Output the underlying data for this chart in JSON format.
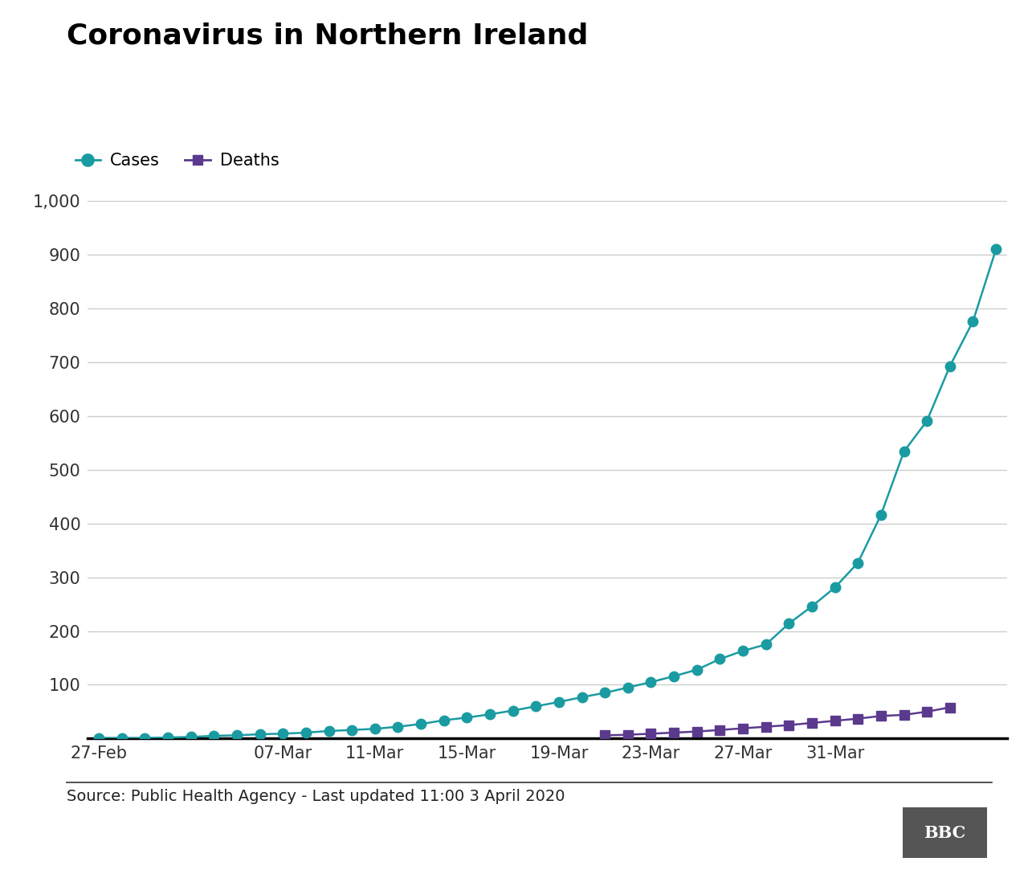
{
  "title": "Coronavirus in Northern Ireland",
  "cases_label": "Cases",
  "deaths_label": "Deaths",
  "source_text": "Source: Public Health Agency - Last updated 11:00 3 April 2020",
  "cases_color": "#1a9ba1",
  "deaths_color": "#5b3a8e",
  "background_color": "#ffffff",
  "plot_bg_color": "#ffffff",
  "grid_color": "#cccccc",
  "ylim": [
    0,
    1000
  ],
  "yticks": [
    0,
    100,
    200,
    300,
    400,
    500,
    600,
    700,
    800,
    900,
    1000
  ],
  "ytick_labels": [
    "",
    "100",
    "200",
    "300",
    "400",
    "500",
    "600",
    "700",
    "800",
    "900",
    "1,000"
  ],
  "cases": [
    1,
    1,
    1,
    2,
    3,
    5,
    6,
    8,
    9,
    11,
    14,
    16,
    18,
    22,
    27,
    34,
    39,
    45,
    52,
    60,
    68,
    77,
    85,
    95,
    105,
    116,
    128,
    148,
    163,
    175,
    214,
    246,
    281,
    327,
    416,
    534,
    591,
    693,
    776,
    910
  ],
  "deaths": [
    null,
    null,
    null,
    null,
    null,
    null,
    null,
    null,
    null,
    null,
    null,
    null,
    null,
    null,
    null,
    null,
    null,
    null,
    null,
    null,
    null,
    null,
    6,
    7,
    9,
    11,
    13,
    16,
    19,
    22,
    25,
    29,
    33,
    37,
    42,
    44,
    50,
    58,
    null,
    null
  ],
  "xtick_indices": [
    0,
    8,
    12,
    16,
    20,
    24,
    28,
    32,
    37
  ],
  "xtick_labels": [
    "27-Feb",
    "07-Mar",
    "11-Mar",
    "15-Mar",
    "19-Mar",
    "23-Mar",
    "27-Mar",
    "31-Mar",
    ""
  ],
  "title_fontsize": 26,
  "legend_fontsize": 15,
  "tick_fontsize": 15,
  "source_fontsize": 14,
  "bbc_bg_color": "#555555",
  "separator_color": "#333333"
}
